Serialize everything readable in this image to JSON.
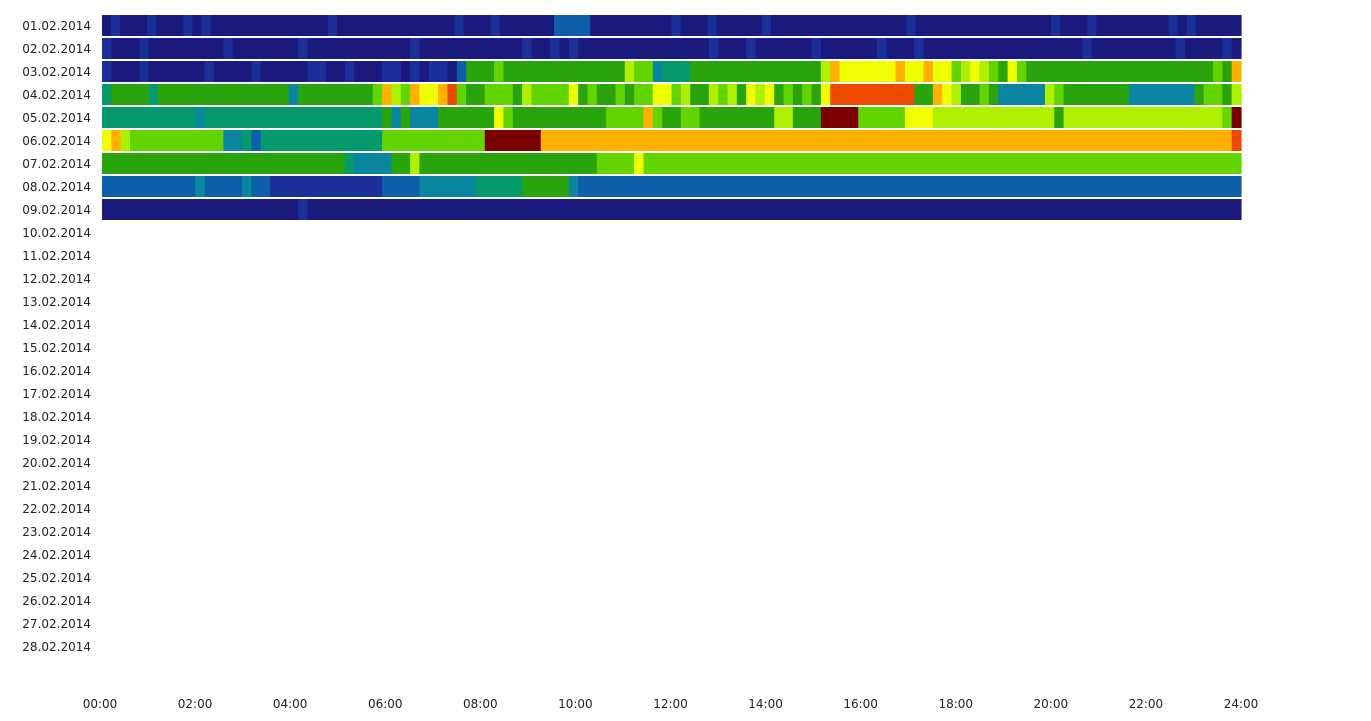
{
  "chart_data": {
    "type": "heatmap",
    "title": "",
    "xlabel": "",
    "ylabel": "",
    "x_range_hours": [
      0,
      24
    ],
    "x_ticks": [
      "00:00",
      "02:00",
      "04:00",
      "06:00",
      "08:00",
      "10:00",
      "12:00",
      "14:00",
      "16:00",
      "18:00",
      "20:00",
      "22:00",
      "24:00"
    ],
    "rows": [
      "01.02.2014",
      "02.02.2014",
      "03.02.2014",
      "04.02.2014",
      "05.02.2014",
      "06.02.2014",
      "07.02.2014",
      "08.02.2014",
      "09.02.2014",
      "10.02.2014",
      "11.02.2014",
      "12.02.2014",
      "13.02.2014",
      "14.02.2014",
      "15.02.2014",
      "16.02.2014",
      "17.02.2014",
      "18.02.2014",
      "19.02.2014",
      "20.02.2014",
      "21.02.2014",
      "22.02.2014",
      "23.02.2014",
      "24.02.2014",
      "25.02.2014",
      "26.02.2014",
      "27.02.2014",
      "28.02.2014"
    ],
    "value_scale": "0 (dark blue) to 10 (dark red)",
    "colormap": [
      "#1a1a7c",
      "#1b2f9a",
      "#0e5eaa",
      "#0a86a0",
      "#049a6c",
      "#2aa40c",
      "#62d400",
      "#aef000",
      "#f0ff00",
      "#ffb000",
      "#ee4a00",
      "#7a0000"
    ],
    "series": [
      {
        "values": [
          0,
          1,
          0,
          0,
          0,
          1,
          0,
          0,
          0,
          1,
          0,
          1,
          0,
          0,
          0,
          0,
          0,
          0,
          0,
          0,
          0,
          0,
          0,
          0,
          0,
          1,
          0,
          0,
          0,
          0,
          0,
          0,
          0,
          0,
          0,
          0,
          0,
          0,
          0,
          1,
          0,
          0,
          0,
          1,
          0,
          0,
          0,
          0,
          0,
          0,
          2,
          2,
          2,
          2,
          0,
          0,
          0,
          0,
          0,
          0,
          0,
          0,
          0,
          1,
          0,
          0,
          0,
          1,
          0,
          0,
          0,
          0,
          0,
          1,
          0,
          0,
          0,
          0,
          0,
          0,
          0,
          0,
          0,
          0,
          0,
          0,
          0,
          0,
          0,
          1,
          0,
          0,
          0,
          0,
          0,
          0,
          0,
          0,
          0,
          0,
          0,
          0,
          0,
          0,
          0,
          1,
          0,
          0,
          0,
          1,
          0,
          0,
          0,
          0,
          0,
          0,
          0,
          0,
          1,
          0,
          1,
          0,
          0,
          0,
          0,
          0
        ]
      },
      {
        "values": [
          1,
          0,
          0,
          0,
          1,
          0,
          0,
          0,
          0,
          0,
          0,
          0,
          0,
          1,
          0,
          0,
          0,
          0,
          0,
          0,
          0,
          1,
          0,
          0,
          0,
          0,
          0,
          0,
          0,
          0,
          0,
          0,
          0,
          1,
          0,
          0,
          0,
          0,
          0,
          0,
          0,
          0,
          0,
          0,
          0,
          1,
          0,
          0,
          1,
          0,
          1,
          0,
          0,
          0,
          0,
          0,
          0,
          0,
          0,
          0,
          0,
          0,
          0,
          0,
          0,
          1,
          0,
          0,
          0,
          1,
          0,
          0,
          0,
          0,
          0,
          0,
          1,
          0,
          0,
          0,
          0,
          0,
          0,
          1,
          0,
          0,
          0,
          1,
          0,
          0,
          0,
          0,
          0,
          0,
          0,
          0,
          0,
          0,
          0,
          0,
          0,
          0,
          0,
          0,
          0,
          1,
          0,
          0,
          0,
          0,
          0,
          0,
          0,
          0,
          0,
          1,
          0,
          0,
          0,
          0,
          1,
          0
        ]
      },
      {
        "values": [
          1,
          0,
          0,
          0,
          1,
          0,
          0,
          0,
          0,
          0,
          0,
          1,
          0,
          0,
          0,
          0,
          1,
          0,
          0,
          0,
          0,
          0,
          1,
          1,
          0,
          0,
          1,
          0,
          0,
          0,
          1,
          1,
          0,
          1,
          0,
          1,
          1,
          0,
          2,
          5,
          5,
          5,
          6,
          5,
          5,
          5,
          5,
          5,
          5,
          5,
          5,
          5,
          5,
          5,
          5,
          5,
          7,
          6,
          6,
          3,
          4,
          4,
          4,
          5,
          5,
          5,
          5,
          5,
          5,
          5,
          5,
          5,
          5,
          5,
          5,
          5,
          5,
          7,
          9,
          8,
          8,
          8,
          8,
          8,
          8,
          9,
          8,
          8,
          9,
          8,
          8,
          6,
          7,
          8,
          7,
          6,
          5,
          8,
          6,
          5,
          5,
          5,
          5,
          5,
          5,
          5,
          5,
          5,
          5,
          5,
          5,
          5,
          5,
          5,
          5,
          5,
          5,
          5,
          5,
          6,
          5,
          9
        ]
      },
      {
        "values": [
          4,
          5,
          5,
          5,
          5,
          4,
          5,
          5,
          5,
          5,
          5,
          5,
          5,
          5,
          5,
          5,
          5,
          5,
          5,
          5,
          3,
          5,
          5,
          5,
          5,
          5,
          5,
          5,
          5,
          6,
          9,
          7,
          6,
          9,
          8,
          8,
          9,
          10,
          6,
          5,
          5,
          6,
          6,
          6,
          5,
          7,
          6,
          6,
          6,
          6,
          8,
          5,
          6,
          5,
          5,
          6,
          5,
          6,
          6,
          8,
          8,
          6,
          7,
          5,
          5,
          7,
          6,
          7,
          5,
          8,
          7,
          8,
          5,
          6,
          5,
          6,
          5,
          8,
          10,
          10,
          10,
          10,
          10,
          10,
          10,
          10,
          10,
          5,
          5,
          9,
          8,
          7,
          5,
          5,
          6,
          5,
          3,
          3,
          3,
          3,
          3,
          7,
          6,
          5,
          5,
          5,
          5,
          5,
          5,
          5,
          3,
          3,
          3,
          3,
          3,
          3,
          3,
          5,
          6,
          6,
          5,
          7
        ]
      },
      {
        "values": [
          4,
          4,
          4,
          4,
          4,
          4,
          4,
          4,
          4,
          4,
          3,
          4,
          4,
          4,
          4,
          4,
          4,
          4,
          4,
          4,
          4,
          4,
          4,
          4,
          4,
          4,
          4,
          4,
          4,
          4,
          5,
          3,
          5,
          3,
          3,
          3,
          5,
          5,
          5,
          5,
          5,
          5,
          8,
          6,
          5,
          5,
          5,
          5,
          5,
          5,
          5,
          5,
          5,
          5,
          6,
          6,
          6,
          6,
          9,
          6,
          5,
          5,
          6,
          6,
          5,
          5,
          5,
          5,
          5,
          5,
          5,
          5,
          7,
          7,
          5,
          5,
          5,
          11,
          11,
          11,
          11,
          6,
          6,
          6,
          6,
          6,
          8,
          8,
          8,
          7,
          7,
          7,
          7,
          7,
          7,
          7,
          7,
          7,
          7,
          7,
          7,
          7,
          5,
          7,
          7,
          7,
          7,
          7,
          7,
          7,
          7,
          7,
          7,
          7,
          7,
          7,
          7,
          7,
          7,
          7,
          6,
          11
        ]
      },
      {
        "values": [
          8,
          9,
          7,
          6,
          6,
          6,
          6,
          6,
          6,
          6,
          6,
          6,
          6,
          3,
          3,
          4,
          2,
          4,
          4,
          4,
          4,
          4,
          4,
          4,
          4,
          4,
          4,
          4,
          4,
          4,
          6,
          6,
          6,
          6,
          6,
          6,
          6,
          6,
          6,
          6,
          6,
          11,
          11,
          11,
          11,
          11,
          11,
          9,
          9,
          9,
          9,
          9,
          9,
          9,
          9,
          9,
          9,
          9,
          9,
          9,
          9,
          9,
          9,
          9,
          9,
          9,
          9,
          9,
          9,
          9,
          9,
          9,
          9,
          9,
          9,
          9,
          9,
          9,
          9,
          9,
          9,
          9,
          9,
          9,
          9,
          9,
          9,
          9,
          9,
          9,
          9,
          9,
          9,
          9,
          9,
          9,
          9,
          9,
          9,
          9,
          9,
          9,
          9,
          9,
          9,
          9,
          9,
          9,
          9,
          9,
          9,
          9,
          9,
          9,
          9,
          9,
          9,
          9,
          9,
          9,
          9,
          10
        ]
      },
      {
        "values": [
          5,
          5,
          5,
          5,
          5,
          5,
          5,
          5,
          5,
          5,
          5,
          5,
          5,
          5,
          5,
          5,
          5,
          5,
          5,
          5,
          5,
          5,
          5,
          5,
          5,
          5,
          4,
          3,
          3,
          3,
          3,
          5,
          5,
          7,
          5,
          5,
          5,
          5,
          5,
          5,
          5,
          5,
          5,
          5,
          5,
          5,
          5,
          5,
          5,
          5,
          5,
          5,
          5,
          6,
          6,
          6,
          6,
          8,
          6,
          6,
          6,
          6,
          6,
          6,
          6,
          6,
          6,
          6,
          6,
          6,
          6,
          6,
          6,
          6,
          6,
          6,
          6,
          6,
          6,
          6,
          6,
          6,
          6,
          6,
          6,
          6,
          6,
          6,
          6,
          6,
          6,
          6,
          6,
          6,
          6,
          6,
          6,
          6,
          6,
          6,
          6,
          6,
          6,
          6,
          6,
          6,
          6,
          6,
          6,
          6,
          6,
          6,
          6,
          6,
          6,
          6,
          6,
          6,
          6,
          6,
          6,
          6
        ]
      },
      {
        "values": [
          2,
          2,
          2,
          2,
          2,
          2,
          2,
          2,
          2,
          2,
          3,
          2,
          2,
          2,
          2,
          3,
          2,
          2,
          1,
          1,
          1,
          1,
          1,
          1,
          1,
          1,
          1,
          1,
          1,
          1,
          2,
          2,
          2,
          2,
          3,
          3,
          3,
          3,
          3,
          3,
          4,
          4,
          4,
          4,
          4,
          5,
          5,
          5,
          5,
          5,
          3,
          2,
          2,
          2,
          2,
          2,
          2,
          2,
          2,
          2,
          2,
          2,
          2,
          2,
          2,
          2,
          2,
          2,
          2,
          2,
          2,
          2,
          2,
          2,
          2,
          2,
          2,
          2,
          2,
          2,
          2,
          2,
          2,
          2,
          2,
          2,
          2,
          2,
          2,
          2,
          2,
          2,
          2,
          2,
          2,
          2,
          2,
          2,
          2,
          2,
          2,
          2,
          2,
          2,
          2,
          2,
          2,
          2,
          2,
          2,
          2,
          2,
          2,
          2,
          2,
          2,
          2,
          2,
          2,
          2,
          2,
          2
        ]
      },
      {
        "values": [
          0,
          0,
          0,
          0,
          0,
          0,
          0,
          0,
          0,
          0,
          0,
          0,
          0,
          0,
          0,
          0,
          0,
          0,
          0,
          0,
          0,
          1,
          0,
          0,
          0,
          0,
          0,
          0,
          0,
          0,
          0,
          0,
          0,
          0,
          0,
          0,
          0,
          0,
          0,
          0,
          0,
          0,
          0,
          0,
          0,
          0,
          0,
          0,
          0,
          0,
          0,
          0,
          0,
          0,
          0,
          0,
          0,
          0,
          0,
          0,
          0,
          0,
          0,
          0,
          0,
          0,
          0,
          0,
          0,
          0,
          0,
          0,
          0,
          0,
          0,
          0,
          0,
          0,
          0,
          0,
          0,
          0,
          0,
          0,
          0,
          0,
          0,
          0,
          0,
          0,
          0,
          0,
          0,
          0,
          0,
          0,
          0,
          0,
          0,
          0,
          0,
          0,
          0,
          0,
          0,
          0,
          0,
          0,
          0,
          0,
          0,
          0,
          0,
          0,
          0,
          0,
          0,
          0,
          0,
          0,
          0,
          0
        ]
      }
    ]
  }
}
